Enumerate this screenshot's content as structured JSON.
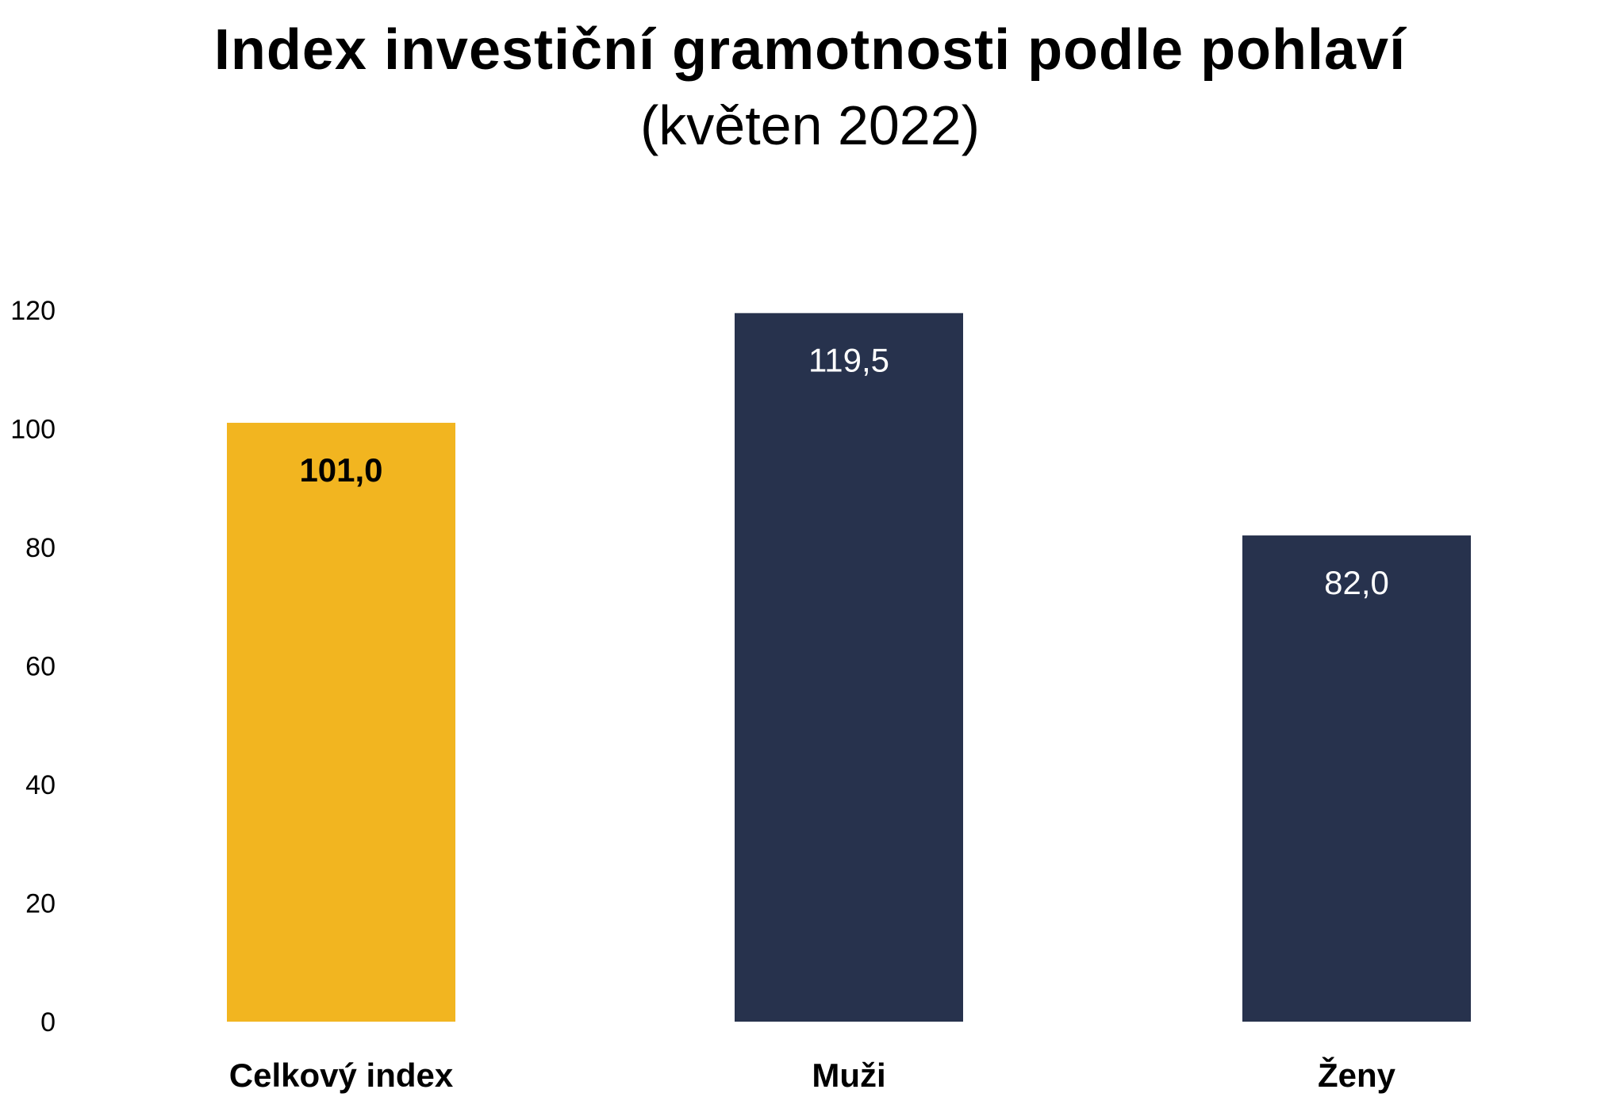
{
  "chart_data": {
    "type": "bar",
    "title": "Index investiční gramotnosti podle pohlaví",
    "subtitle": "(květen 2022)",
    "categories": [
      "Celkový index",
      "Muži",
      "Ženy"
    ],
    "values": [
      101.0,
      119.5,
      82.0
    ],
    "value_labels": [
      "101,0",
      "119,5",
      "82,0"
    ],
    "colors": [
      "#F2B520",
      "#27324D",
      "#27324D"
    ],
    "label_colors": [
      "#000000",
      "#FFFFFF",
      "#FFFFFF"
    ],
    "label_bold": [
      true,
      false,
      false
    ],
    "ylim": [
      0,
      120
    ],
    "yticks": [
      0,
      20,
      40,
      60,
      80,
      100,
      120
    ],
    "ytick_labels": [
      "0",
      "20",
      "40",
      "60",
      "80",
      "100",
      "120"
    ],
    "grid": false,
    "legend": "none",
    "xlabel": "",
    "ylabel": ""
  }
}
